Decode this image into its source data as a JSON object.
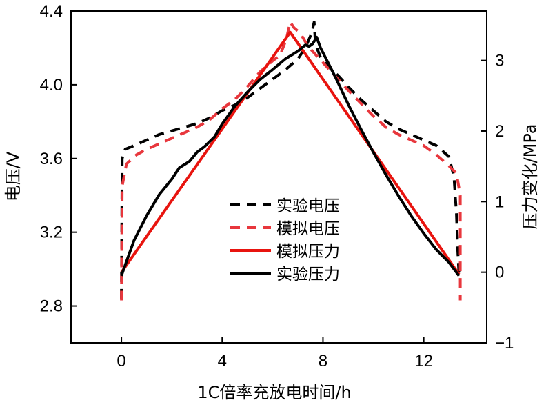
{
  "chart_data": {
    "type": "line",
    "xlabel": "1C倍率充放电时间/h",
    "ylabel_left": "电压/V",
    "ylabel_right": "压力变化/MPa",
    "xlim": [
      -2.0,
      14.5
    ],
    "ylim_left": [
      2.6,
      4.4
    ],
    "ylim_right": [
      -1,
      3.7
    ],
    "x_ticks": [
      0,
      4,
      8,
      12
    ],
    "y_left_ticks": [
      2.8,
      3.2,
      3.6,
      4.0,
      4.4
    ],
    "y_left_tick_labels": [
      "2.8",
      "3.2",
      "3.6",
      "4.0",
      "4.4"
    ],
    "y_right_ticks": [
      -1,
      0,
      1,
      2,
      3
    ],
    "y_right_tick_labels": [
      "−1",
      "0",
      "1",
      "2",
      "3"
    ],
    "legend_position": "center",
    "grid": false,
    "series": [
      {
        "name": "实验电压",
        "axis": "left",
        "color": "#000000",
        "style": "dashed",
        "points": [
          [
            0,
            2.84
          ],
          [
            0.03,
            3.6
          ],
          [
            0.15,
            3.65
          ],
          [
            0.5,
            3.67
          ],
          [
            1.0,
            3.7
          ],
          [
            1.5,
            3.73
          ],
          [
            2.0,
            3.75
          ],
          [
            2.5,
            3.77
          ],
          [
            3.0,
            3.79
          ],
          [
            3.5,
            3.82
          ],
          [
            4.0,
            3.86
          ],
          [
            4.5,
            3.89
          ],
          [
            5.0,
            3.93
          ],
          [
            5.5,
            3.98
          ],
          [
            6.0,
            4.03
          ],
          [
            6.5,
            4.08
          ],
          [
            7.0,
            4.14
          ],
          [
            7.3,
            4.2
          ],
          [
            7.55,
            4.28
          ],
          [
            7.65,
            4.34
          ],
          [
            7.7,
            4.22
          ],
          [
            7.9,
            4.15
          ],
          [
            8.2,
            4.1
          ],
          [
            8.6,
            4.05
          ],
          [
            9.0,
            3.99
          ],
          [
            9.5,
            3.92
          ],
          [
            10.0,
            3.86
          ],
          [
            10.5,
            3.8
          ],
          [
            11.0,
            3.76
          ],
          [
            11.5,
            3.73
          ],
          [
            12.0,
            3.7
          ],
          [
            12.5,
            3.67
          ],
          [
            13.0,
            3.61
          ],
          [
            13.2,
            3.5
          ],
          [
            13.3,
            3.3
          ],
          [
            13.35,
            3.1
          ],
          [
            13.4,
            2.97
          ]
        ]
      },
      {
        "name": "模拟电压",
        "axis": "left",
        "color": "#e8373d",
        "style": "dashed",
        "points": [
          [
            0,
            2.83
          ],
          [
            0.03,
            3.45
          ],
          [
            0.2,
            3.57
          ],
          [
            0.6,
            3.62
          ],
          [
            1.0,
            3.65
          ],
          [
            1.5,
            3.68
          ],
          [
            2.0,
            3.71
          ],
          [
            2.5,
            3.74
          ],
          [
            3.0,
            3.77
          ],
          [
            3.5,
            3.81
          ],
          [
            4.0,
            3.87
          ],
          [
            4.5,
            3.92
          ],
          [
            5.0,
            3.99
          ],
          [
            5.5,
            4.07
          ],
          [
            6.0,
            4.13
          ],
          [
            6.3,
            4.16
          ],
          [
            6.55,
            4.25
          ],
          [
            6.7,
            4.34
          ],
          [
            6.85,
            4.31
          ],
          [
            7.1,
            4.28
          ],
          [
            7.4,
            4.21
          ],
          [
            7.8,
            4.15
          ],
          [
            8.2,
            4.09
          ],
          [
            8.6,
            4.03
          ],
          [
            9.0,
            3.97
          ],
          [
            9.5,
            3.9
          ],
          [
            10.0,
            3.83
          ],
          [
            10.5,
            3.77
          ],
          [
            11.0,
            3.73
          ],
          [
            11.5,
            3.7
          ],
          [
            12.0,
            3.67
          ],
          [
            12.5,
            3.62
          ],
          [
            13.0,
            3.56
          ],
          [
            13.3,
            3.52
          ],
          [
            13.45,
            3.4
          ],
          [
            13.45,
            2.83
          ]
        ]
      },
      {
        "name": "模拟压力",
        "axis": "right",
        "color": "#e8140f",
        "style": "solid",
        "points": [
          [
            0,
            0
          ],
          [
            6.7,
            3.4
          ],
          [
            13.4,
            -0.03
          ]
        ]
      },
      {
        "name": "实验压力",
        "axis": "right",
        "color": "#000000",
        "style": "solid",
        "points": [
          [
            0,
            -0.05
          ],
          [
            0.1,
            0.05
          ],
          [
            0.5,
            0.45
          ],
          [
            1.0,
            0.8
          ],
          [
            1.5,
            1.1
          ],
          [
            2.0,
            1.32
          ],
          [
            2.3,
            1.48
          ],
          [
            2.7,
            1.57
          ],
          [
            3.0,
            1.7
          ],
          [
            3.3,
            1.78
          ],
          [
            3.7,
            1.92
          ],
          [
            4.0,
            2.1
          ],
          [
            4.5,
            2.35
          ],
          [
            5.0,
            2.55
          ],
          [
            5.5,
            2.73
          ],
          [
            6.0,
            2.87
          ],
          [
            6.5,
            3.02
          ],
          [
            7.0,
            3.13
          ],
          [
            7.3,
            3.22
          ],
          [
            7.45,
            3.2
          ],
          [
            7.6,
            3.24
          ],
          [
            7.75,
            3.33
          ],
          [
            7.9,
            3.18
          ],
          [
            8.1,
            3.04
          ],
          [
            8.5,
            2.76
          ],
          [
            9.0,
            2.38
          ],
          [
            9.5,
            2.03
          ],
          [
            10.0,
            1.7
          ],
          [
            10.5,
            1.38
          ],
          [
            11.0,
            1.08
          ],
          [
            11.5,
            0.8
          ],
          [
            12.0,
            0.55
          ],
          [
            12.5,
            0.32
          ],
          [
            13.0,
            0.14
          ],
          [
            13.4,
            -0.05
          ]
        ]
      }
    ]
  }
}
